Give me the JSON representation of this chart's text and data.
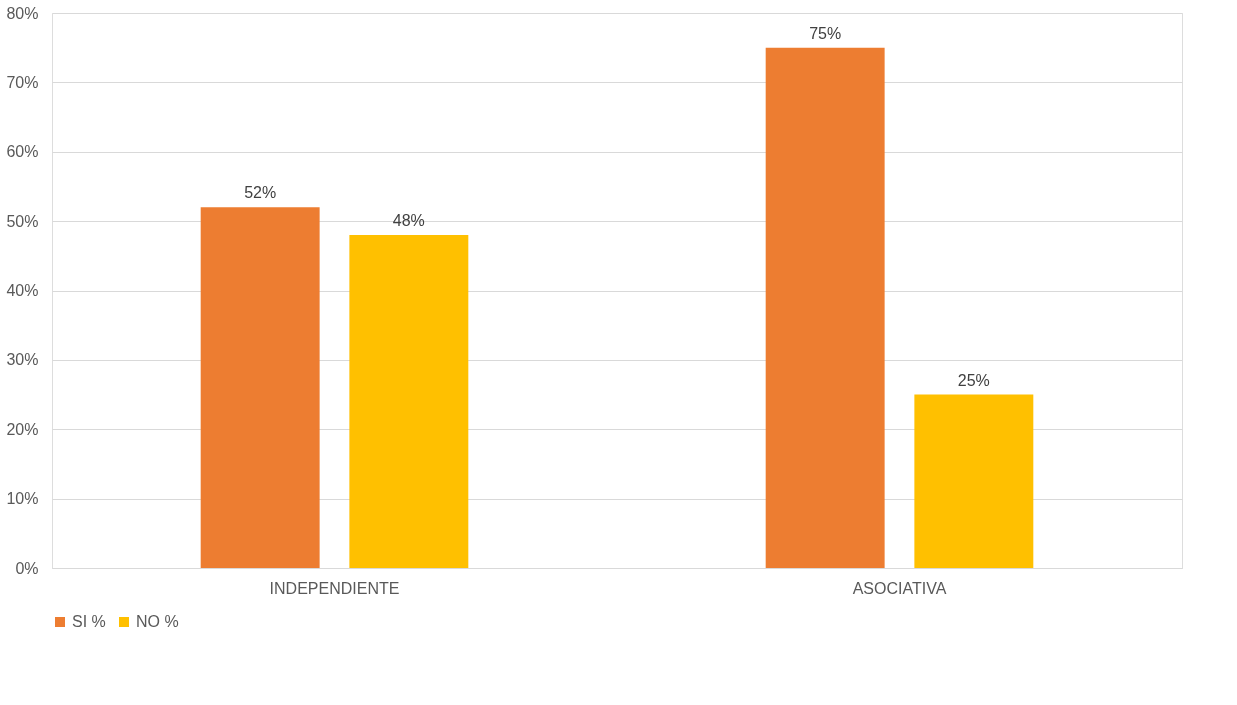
{
  "chart_data": {
    "type": "bar",
    "categories": [
      "INDEPENDIENTE",
      "ASOCIATIVA"
    ],
    "series": [
      {
        "name": "SI %",
        "color": "#ed7d31",
        "values": [
          52,
          75
        ],
        "value_labels": [
          "52%",
          "75%"
        ]
      },
      {
        "name": "NO %",
        "color": "#ffc000",
        "values": [
          48,
          25
        ],
        "value_labels": [
          "48%",
          "25%"
        ]
      }
    ],
    "ylim": [
      0,
      80
    ],
    "yticks": [
      {
        "value": 0,
        "label": "0%"
      },
      {
        "value": 10,
        "label": "10%"
      },
      {
        "value": 20,
        "label": "20%"
      },
      {
        "value": 30,
        "label": "30%"
      },
      {
        "value": 40,
        "label": "40%"
      },
      {
        "value": 50,
        "label": "50%"
      },
      {
        "value": 60,
        "label": "60%"
      },
      {
        "value": 70,
        "label": "70%"
      },
      {
        "value": 80,
        "label": "80%"
      }
    ],
    "grid": "y",
    "legend": "bottom"
  }
}
